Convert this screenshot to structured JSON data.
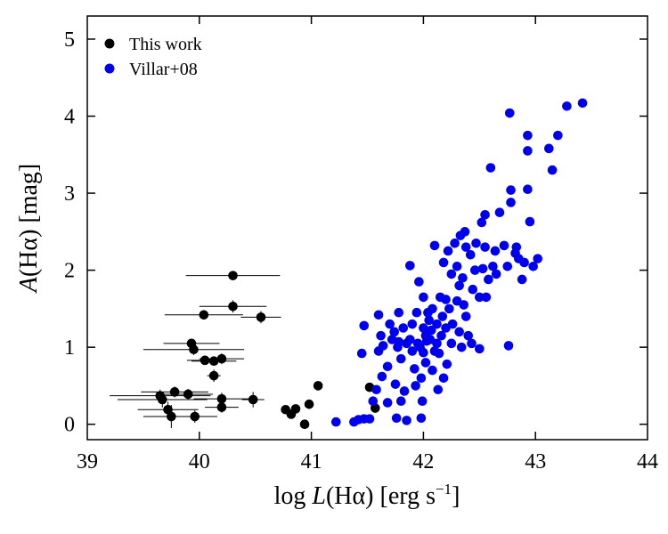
{
  "chart_data": {
    "type": "scatter",
    "title": "",
    "xlabel": {
      "prefix": "log ",
      "var": "L",
      "paren": "(Hα) [erg s",
      "sup": "−1",
      "suffix": "]"
    },
    "ylabel": {
      "var": "A",
      "paren": "(Hα) [mag]"
    },
    "xlim": [
      39,
      44
    ],
    "ylim": [
      -0.2,
      5.3
    ],
    "xticks": [
      39,
      40,
      41,
      42,
      43,
      44
    ],
    "xtick_labels": [
      "39",
      "40",
      "41",
      "42",
      "43",
      "44"
    ],
    "yticks": [
      0,
      1,
      2,
      3,
      4,
      5
    ],
    "ytick_labels": [
      "0",
      "1",
      "2",
      "3",
      "4",
      "5"
    ],
    "legend_position": "top-left",
    "colors": {
      "this_work": "#000000",
      "villar": "#0000ee"
    },
    "series": [
      {
        "name": "This work",
        "color": "#000000",
        "error_bars": true,
        "points": [
          {
            "x": 40.3,
            "y": 1.93,
            "xerr": 0.42,
            "yerr": 0.05
          },
          {
            "x": 40.3,
            "y": 1.53,
            "xerr": 0.3,
            "yerr": 0.08
          },
          {
            "x": 40.55,
            "y": 1.39,
            "xerr": 0.18,
            "yerr": 0.08
          },
          {
            "x": 40.04,
            "y": 1.42,
            "xerr": 0.35,
            "yerr": 0.06
          },
          {
            "x": 39.93,
            "y": 1.05,
            "xerr": 0.25,
            "yerr": 0.06
          },
          {
            "x": 39.95,
            "y": 0.97,
            "xerr": 0.45,
            "yerr": 0.07
          },
          {
            "x": 40.05,
            "y": 0.83,
            "xerr": 0.16,
            "yerr": 0.06
          },
          {
            "x": 40.13,
            "y": 0.82,
            "xerr": 0.2,
            "yerr": 0.06
          },
          {
            "x": 40.2,
            "y": 0.85,
            "xerr": 0.2,
            "yerr": 0.07
          },
          {
            "x": 40.13,
            "y": 0.63,
            "xerr": 0.06,
            "yerr": 0.08
          },
          {
            "x": 39.65,
            "y": 0.37,
            "xerr": 0.45,
            "yerr": 0.08
          },
          {
            "x": 39.67,
            "y": 0.32,
            "xerr": 0.4,
            "yerr": 0.1
          },
          {
            "x": 39.78,
            "y": 0.42,
            "xerr": 0.3,
            "yerr": 0.07
          },
          {
            "x": 39.9,
            "y": 0.39,
            "xerr": 0.22,
            "yerr": 0.07
          },
          {
            "x": 40.2,
            "y": 0.33,
            "xerr": 0.25,
            "yerr": 0.08
          },
          {
            "x": 39.72,
            "y": 0.19,
            "xerr": 0.27,
            "yerr": 0.1
          },
          {
            "x": 39.75,
            "y": 0.1,
            "xerr": 0.25,
            "yerr": 0.15
          },
          {
            "x": 39.96,
            "y": 0.1,
            "xerr": 0.2,
            "yerr": 0.08
          },
          {
            "x": 40.2,
            "y": 0.22,
            "xerr": 0.15,
            "yerr": 0.07
          },
          {
            "x": 40.48,
            "y": 0.32,
            "xerr": 0.1,
            "yerr": 0.1
          },
          {
            "x": 40.77,
            "y": 0.19
          },
          {
            "x": 40.82,
            "y": 0.13
          },
          {
            "x": 40.86,
            "y": 0.2
          },
          {
            "x": 40.94,
            "y": 0.0
          },
          {
            "x": 40.98,
            "y": 0.26
          },
          {
            "x": 41.06,
            "y": 0.5
          },
          {
            "x": 41.52,
            "y": 0.48
          },
          {
            "x": 41.57,
            "y": 0.21
          }
        ]
      },
      {
        "name": "Villar+08",
        "color": "#0000ee",
        "error_bars": false,
        "points": [
          {
            "x": 41.22,
            "y": 0.03
          },
          {
            "x": 41.38,
            "y": 0.03
          },
          {
            "x": 41.42,
            "y": 0.06
          },
          {
            "x": 41.47,
            "y": 0.07
          },
          {
            "x": 41.52,
            "y": 0.07
          },
          {
            "x": 41.45,
            "y": 0.92
          },
          {
            "x": 41.47,
            "y": 1.28
          },
          {
            "x": 41.55,
            "y": 0.3
          },
          {
            "x": 41.58,
            "y": 0.45
          },
          {
            "x": 41.6,
            "y": 1.42
          },
          {
            "x": 41.6,
            "y": 0.95
          },
          {
            "x": 41.62,
            "y": 1.15
          },
          {
            "x": 41.63,
            "y": 0.62
          },
          {
            "x": 41.64,
            "y": 1.02
          },
          {
            "x": 41.68,
            "y": 0.28
          },
          {
            "x": 41.68,
            "y": 0.75
          },
          {
            "x": 41.7,
            "y": 1.3
          },
          {
            "x": 41.72,
            "y": 1.1
          },
          {
            "x": 41.74,
            "y": 1.2
          },
          {
            "x": 41.75,
            "y": 0.52
          },
          {
            "x": 41.76,
            "y": 0.08
          },
          {
            "x": 41.77,
            "y": 1.0
          },
          {
            "x": 41.78,
            "y": 1.07
          },
          {
            "x": 41.78,
            "y": 1.45
          },
          {
            "x": 41.8,
            "y": 0.3
          },
          {
            "x": 41.8,
            "y": 0.85
          },
          {
            "x": 41.82,
            "y": 1.25
          },
          {
            "x": 41.83,
            "y": 0.43
          },
          {
            "x": 41.85,
            "y": 1.05
          },
          {
            "x": 41.85,
            "y": 0.05
          },
          {
            "x": 41.88,
            "y": 2.06
          },
          {
            "x": 41.88,
            "y": 1.1
          },
          {
            "x": 41.9,
            "y": 0.95
          },
          {
            "x": 41.9,
            "y": 1.3
          },
          {
            "x": 41.92,
            "y": 0.72
          },
          {
            "x": 41.93,
            "y": 0.5
          },
          {
            "x": 41.94,
            "y": 1.45
          },
          {
            "x": 41.95,
            "y": 1.05
          },
          {
            "x": 41.96,
            "y": 1.85
          },
          {
            "x": 41.97,
            "y": 1.0
          },
          {
            "x": 41.98,
            "y": 0.08
          },
          {
            "x": 41.98,
            "y": 0.6
          },
          {
            "x": 41.99,
            "y": 0.3
          },
          {
            "x": 42.0,
            "y": 0.93
          },
          {
            "x": 42.0,
            "y": 1.65
          },
          {
            "x": 42.0,
            "y": 1.25
          },
          {
            "x": 42.02,
            "y": 1.15
          },
          {
            "x": 42.02,
            "y": 0.8
          },
          {
            "x": 42.03,
            "y": 1.08
          },
          {
            "x": 42.04,
            "y": 1.45
          },
          {
            "x": 42.05,
            "y": 1.35
          },
          {
            "x": 42.06,
            "y": 1.1
          },
          {
            "x": 42.07,
            "y": 1.22
          },
          {
            "x": 42.08,
            "y": 0.7
          },
          {
            "x": 42.08,
            "y": 1.5
          },
          {
            "x": 42.1,
            "y": 0.95
          },
          {
            "x": 42.1,
            "y": 2.32
          },
          {
            "x": 42.12,
            "y": 1.05
          },
          {
            "x": 42.12,
            "y": 1.3
          },
          {
            "x": 42.13,
            "y": 0.45
          },
          {
            "x": 42.14,
            "y": 0.92
          },
          {
            "x": 42.15,
            "y": 1.65
          },
          {
            "x": 42.16,
            "y": 1.15
          },
          {
            "x": 42.17,
            "y": 1.4
          },
          {
            "x": 42.18,
            "y": 0.6
          },
          {
            "x": 42.18,
            "y": 2.1
          },
          {
            "x": 42.2,
            "y": 1.25
          },
          {
            "x": 42.2,
            "y": 1.62
          },
          {
            "x": 42.21,
            "y": 0.78
          },
          {
            "x": 42.22,
            "y": 2.25
          },
          {
            "x": 42.23,
            "y": 1.5
          },
          {
            "x": 42.25,
            "y": 1.95
          },
          {
            "x": 42.25,
            "y": 1.05
          },
          {
            "x": 42.26,
            "y": 1.3
          },
          {
            "x": 42.28,
            "y": 2.35
          },
          {
            "x": 42.3,
            "y": 1.6
          },
          {
            "x": 42.3,
            "y": 2.05
          },
          {
            "x": 42.32,
            "y": 1.2
          },
          {
            "x": 42.32,
            "y": 1.8
          },
          {
            "x": 42.33,
            "y": 2.45
          },
          {
            "x": 42.34,
            "y": 1.0
          },
          {
            "x": 42.35,
            "y": 1.9
          },
          {
            "x": 42.36,
            "y": 1.55
          },
          {
            "x": 42.37,
            "y": 2.5
          },
          {
            "x": 42.38,
            "y": 1.4
          },
          {
            "x": 42.38,
            "y": 2.3
          },
          {
            "x": 42.4,
            "y": 1.15
          },
          {
            "x": 42.42,
            "y": 2.2
          },
          {
            "x": 42.43,
            "y": 1.05
          },
          {
            "x": 42.44,
            "y": 1.75
          },
          {
            "x": 42.46,
            "y": 2.0
          },
          {
            "x": 42.47,
            "y": 2.35
          },
          {
            "x": 42.5,
            "y": 1.65
          },
          {
            "x": 42.5,
            "y": 0.98
          },
          {
            "x": 42.52,
            "y": 2.62
          },
          {
            "x": 42.53,
            "y": 2.02
          },
          {
            "x": 42.55,
            "y": 2.72
          },
          {
            "x": 42.55,
            "y": 2.3
          },
          {
            "x": 42.56,
            "y": 1.65
          },
          {
            "x": 42.58,
            "y": 1.88
          },
          {
            "x": 42.6,
            "y": 3.33
          },
          {
            "x": 42.62,
            "y": 2.05
          },
          {
            "x": 42.64,
            "y": 2.25
          },
          {
            "x": 42.65,
            "y": 1.95
          },
          {
            "x": 42.68,
            "y": 2.75
          },
          {
            "x": 42.72,
            "y": 2.32
          },
          {
            "x": 42.75,
            "y": 2.05
          },
          {
            "x": 42.76,
            "y": 1.02
          },
          {
            "x": 42.77,
            "y": 4.04
          },
          {
            "x": 42.78,
            "y": 3.04
          },
          {
            "x": 42.78,
            "y": 2.88
          },
          {
            "x": 42.82,
            "y": 2.22
          },
          {
            "x": 42.83,
            "y": 2.3
          },
          {
            "x": 42.85,
            "y": 2.15
          },
          {
            "x": 42.88,
            "y": 1.88
          },
          {
            "x": 42.9,
            "y": 2.1
          },
          {
            "x": 42.93,
            "y": 3.75
          },
          {
            "x": 42.93,
            "y": 3.05
          },
          {
            "x": 42.93,
            "y": 3.55
          },
          {
            "x": 42.95,
            "y": 2.63
          },
          {
            "x": 42.98,
            "y": 2.05
          },
          {
            "x": 43.02,
            "y": 2.15
          },
          {
            "x": 43.12,
            "y": 3.58
          },
          {
            "x": 43.15,
            "y": 3.3
          },
          {
            "x": 43.2,
            "y": 3.75
          },
          {
            "x": 43.28,
            "y": 4.13
          },
          {
            "x": 43.42,
            "y": 4.17
          }
        ]
      }
    ]
  }
}
